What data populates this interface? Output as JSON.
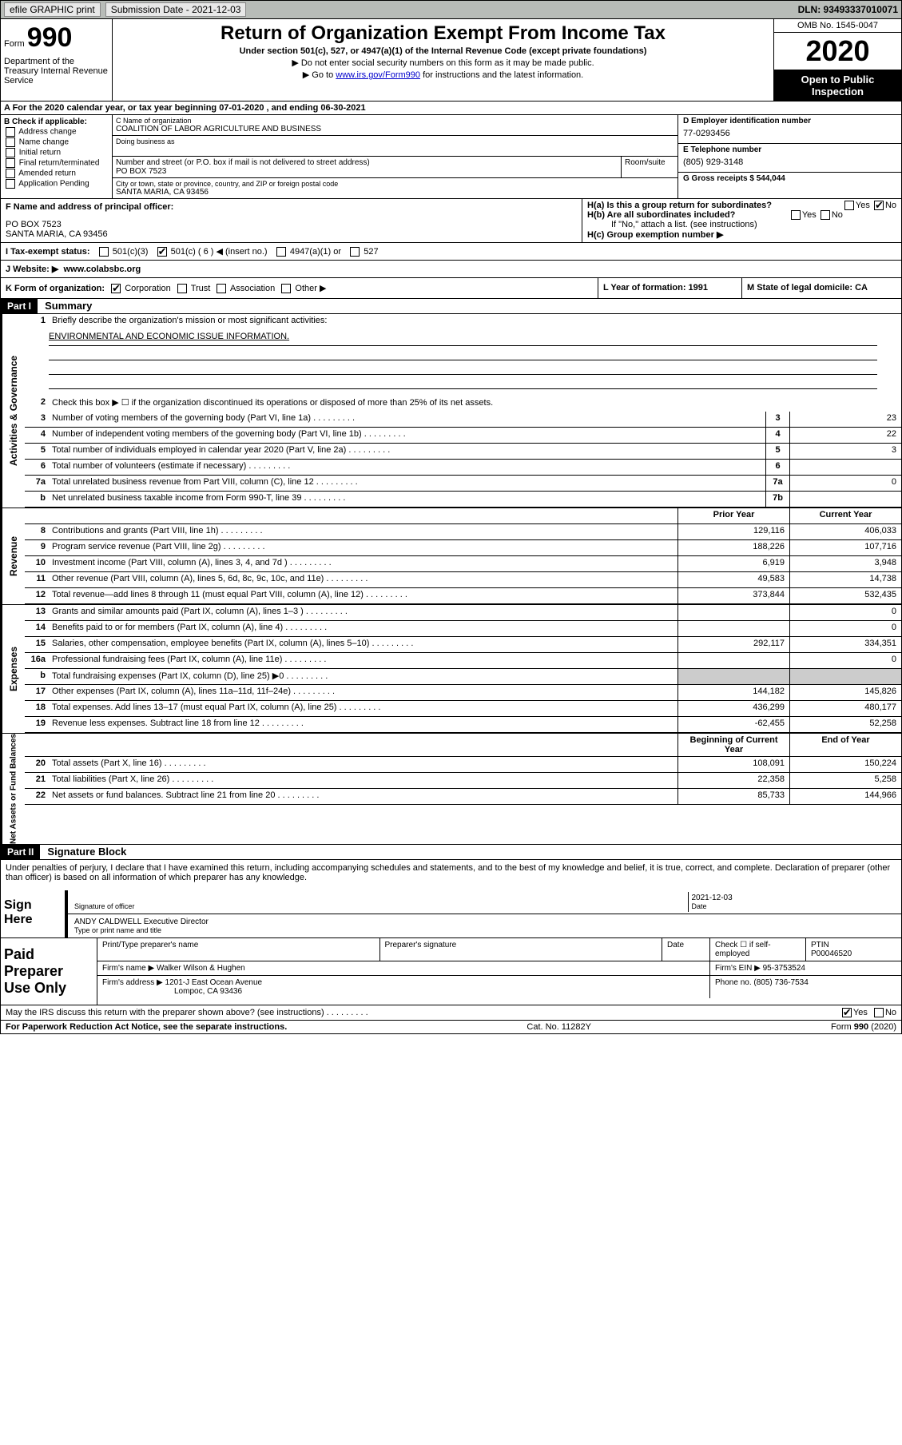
{
  "topbar": {
    "efile": "efile GRAPHIC print",
    "submission": "Submission Date - 2021-12-03",
    "dln": "DLN: 93493337010071"
  },
  "header": {
    "form_label": "Form",
    "form_num": "990",
    "dept": "Department of the Treasury Internal Revenue Service",
    "title": "Return of Organization Exempt From Income Tax",
    "sub": "Under section 501(c), 527, or 4947(a)(1) of the Internal Revenue Code (except private foundations)",
    "arrow1": "▶ Do not enter social security numbers on this form as it may be made public.",
    "arrow2_pre": "▶ Go to ",
    "arrow2_link": "www.irs.gov/Form990",
    "arrow2_post": " for instructions and the latest information.",
    "omb": "OMB No. 1545-0047",
    "year": "2020",
    "open_pub": "Open to Public Inspection"
  },
  "row_a": "A For the 2020 calendar year, or tax year beginning 07-01-2020   , and ending 06-30-2021",
  "col_b": {
    "hdr": "B Check if applicable:",
    "items": [
      "Address change",
      "Name change",
      "Initial return",
      "Final return/terminated",
      "Amended return",
      "Application Pending"
    ]
  },
  "col_c": {
    "name_lbl": "C Name of organization",
    "name": "COALITION OF LABOR AGRICULTURE AND BUSINESS",
    "dba_lbl": "Doing business as",
    "addr_lbl": "Number and street (or P.O. box if mail is not delivered to street address)",
    "addr": "PO BOX 7523",
    "room_lbl": "Room/suite",
    "city_lbl": "City or town, state or province, country, and ZIP or foreign postal code",
    "city": "SANTA MARIA, CA  93456"
  },
  "col_de": {
    "d_lbl": "D Employer identification number",
    "d_val": "77-0293456",
    "e_lbl": "E Telephone number",
    "e_val": "(805) 929-3148",
    "g_lbl": "G Gross receipts $ 544,044"
  },
  "section_f": {
    "f_lbl": "F Name and address of principal officer:",
    "f_addr1": "PO BOX 7523",
    "f_addr2": "SANTA MARIA, CA  93456",
    "ha": "H(a)  Is this a group return for subordinates?",
    "hb": "H(b)  Are all subordinates included?",
    "hb_note": "If \"No,\" attach a list. (see instructions)",
    "hc": "H(c)  Group exemption number ▶"
  },
  "tax_row": {
    "i_lbl": "I   Tax-exempt status:",
    "opts": [
      "501(c)(3)",
      "501(c) ( 6 ) ◀ (insert no.)",
      "4947(a)(1) or",
      "527"
    ]
  },
  "web": {
    "lbl": "J   Website: ▶",
    "val": "www.colabsbc.org"
  },
  "row_k": {
    "k_lbl": "K Form of organization:",
    "opts": [
      "Corporation",
      "Trust",
      "Association",
      "Other ▶"
    ],
    "l_lbl": "L Year of formation: 1991",
    "m_lbl": "M State of legal domicile: CA"
  },
  "parts": {
    "part1": "Part I",
    "summary": "Summary",
    "part2": "Part II",
    "sig_block": "Signature Block"
  },
  "summary": {
    "q1": "Briefly describe the organization's mission or most significant activities:",
    "q1_ans": "ENVIRONMENTAL AND ECONOMIC ISSUE INFORMATION.",
    "q2": "Check this box ▶ ☐  if the organization discontinued its operations or disposed of more than 25% of its net assets."
  },
  "side_labels": {
    "gov": "Activities & Governance",
    "rev": "Revenue",
    "exp": "Expenses",
    "net": "Net Assets or Fund Balances"
  },
  "gov_lines": [
    {
      "num": "3",
      "txt": "Number of voting members of the governing body (Part VI, line 1a)",
      "box": "3",
      "val": "23"
    },
    {
      "num": "4",
      "txt": "Number of independent voting members of the governing body (Part VI, line 1b)",
      "box": "4",
      "val": "22"
    },
    {
      "num": "5",
      "txt": "Total number of individuals employed in calendar year 2020 (Part V, line 2a)",
      "box": "5",
      "val": "3"
    },
    {
      "num": "6",
      "txt": "Total number of volunteers (estimate if necessary)",
      "box": "6",
      "val": ""
    },
    {
      "num": "7a",
      "txt": "Total unrelated business revenue from Part VIII, column (C), line 12",
      "box": "7a",
      "val": "0"
    },
    {
      "num": "b",
      "txt": "Net unrelated business taxable income from Form 990-T, line 39",
      "box": "7b",
      "val": ""
    }
  ],
  "col_hdrs": {
    "prior": "Prior Year",
    "current": "Current Year",
    "beg": "Beginning of Current Year",
    "end": "End of Year"
  },
  "rev_lines": [
    {
      "num": "8",
      "txt": "Contributions and grants (Part VIII, line 1h)",
      "prior": "129,116",
      "cur": "406,033"
    },
    {
      "num": "9",
      "txt": "Program service revenue (Part VIII, line 2g)",
      "prior": "188,226",
      "cur": "107,716"
    },
    {
      "num": "10",
      "txt": "Investment income (Part VIII, column (A), lines 3, 4, and 7d )",
      "prior": "6,919",
      "cur": "3,948"
    },
    {
      "num": "11",
      "txt": "Other revenue (Part VIII, column (A), lines 5, 6d, 8c, 9c, 10c, and 11e)",
      "prior": "49,583",
      "cur": "14,738"
    },
    {
      "num": "12",
      "txt": "Total revenue—add lines 8 through 11 (must equal Part VIII, column (A), line 12)",
      "prior": "373,844",
      "cur": "532,435"
    }
  ],
  "exp_lines": [
    {
      "num": "13",
      "txt": "Grants and similar amounts paid (Part IX, column (A), lines 1–3 )",
      "prior": "",
      "cur": "0"
    },
    {
      "num": "14",
      "txt": "Benefits paid to or for members (Part IX, column (A), line 4)",
      "prior": "",
      "cur": "0"
    },
    {
      "num": "15",
      "txt": "Salaries, other compensation, employee benefits (Part IX, column (A), lines 5–10)",
      "prior": "292,117",
      "cur": "334,351"
    },
    {
      "num": "16a",
      "txt": "Professional fundraising fees (Part IX, column (A), line 11e)",
      "prior": "",
      "cur": "0"
    },
    {
      "num": "b",
      "txt": "Total fundraising expenses (Part IX, column (D), line 25) ▶0",
      "prior": "",
      "cur": "",
      "nobox": true
    },
    {
      "num": "17",
      "txt": "Other expenses (Part IX, column (A), lines 11a–11d, 11f–24e)",
      "prior": "144,182",
      "cur": "145,826"
    },
    {
      "num": "18",
      "txt": "Total expenses. Add lines 13–17 (must equal Part IX, column (A), line 25)",
      "prior": "436,299",
      "cur": "480,177"
    },
    {
      "num": "19",
      "txt": "Revenue less expenses. Subtract line 18 from line 12",
      "prior": "-62,455",
      "cur": "52,258"
    }
  ],
  "net_lines": [
    {
      "num": "20",
      "txt": "Total assets (Part X, line 16)",
      "prior": "108,091",
      "cur": "150,224"
    },
    {
      "num": "21",
      "txt": "Total liabilities (Part X, line 26)",
      "prior": "22,358",
      "cur": "5,258"
    },
    {
      "num": "22",
      "txt": "Net assets or fund balances. Subtract line 21 from line 20",
      "prior": "85,733",
      "cur": "144,966"
    }
  ],
  "sig": {
    "perjury": "Under penalties of perjury, I declare that I have examined this return, including accompanying schedules and statements, and to the best of my knowledge and belief, it is true, correct, and complete. Declaration of preparer (other than officer) is based on all information of which preparer has any knowledge.",
    "sign_here": "Sign Here",
    "sig_officer": "Signature of officer",
    "date": "Date",
    "date_val": "2021-12-03",
    "name_title": "ANDY CALDWELL  Executive Director",
    "type_lbl": "Type or print name and title",
    "paid_prep": "Paid Preparer Use Only",
    "print_name": "Print/Type preparer's name",
    "prep_sig": "Preparer's signature",
    "check_se": "Check ☐ if self-employed",
    "ptin_lbl": "PTIN",
    "ptin": "P00046520",
    "firm_name_lbl": "Firm's name    ▶",
    "firm_name": "Walker Wilson & Hughen",
    "firm_ein_lbl": "Firm's EIN ▶",
    "firm_ein": "95-3753524",
    "firm_addr_lbl": "Firm's address ▶",
    "firm_addr1": "1201-J East Ocean Avenue",
    "firm_addr2": "Lompoc, CA  93436",
    "phone_lbl": "Phone no.",
    "phone": "(805) 736-7534",
    "discuss": "May the IRS discuss this return with the preparer shown above? (see instructions)"
  },
  "footer": {
    "paperwork": "For Paperwork Reduction Act Notice, see the separate instructions.",
    "cat": "Cat. No. 11282Y",
    "form": "Form 990 (2020)"
  }
}
